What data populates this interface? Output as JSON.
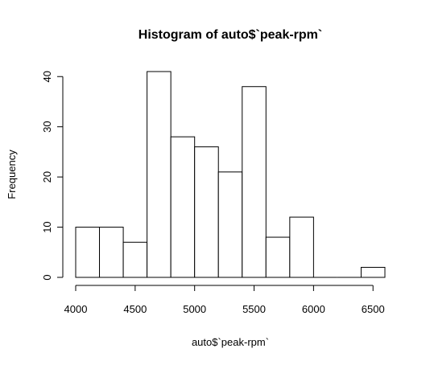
{
  "chart_data": {
    "type": "bar",
    "title": "Histogram of auto$`peak-rpm`",
    "xlabel": "auto$`peak-rpm`",
    "ylabel": "Frequency",
    "bins": [
      {
        "start": 4000,
        "end": 4200,
        "count": 10
      },
      {
        "start": 4200,
        "end": 4400,
        "count": 10
      },
      {
        "start": 4400,
        "end": 4600,
        "count": 7
      },
      {
        "start": 4600,
        "end": 4800,
        "count": 41
      },
      {
        "start": 4800,
        "end": 5000,
        "count": 28
      },
      {
        "start": 5000,
        "end": 5200,
        "count": 26
      },
      {
        "start": 5200,
        "end": 5400,
        "count": 21
      },
      {
        "start": 5400,
        "end": 5600,
        "count": 38
      },
      {
        "start": 5600,
        "end": 5800,
        "count": 8
      },
      {
        "start": 5800,
        "end": 6000,
        "count": 12
      },
      {
        "start": 6000,
        "end": 6200,
        "count": 0
      },
      {
        "start": 6200,
        "end": 6400,
        "count": 0
      },
      {
        "start": 6400,
        "end": 6600,
        "count": 2
      }
    ],
    "xlim": [
      4000,
      6600
    ],
    "ylim": [
      0,
      41
    ],
    "x_ticks": [
      4000,
      4500,
      5000,
      5500,
      6000,
      6500
    ],
    "y_ticks": [
      0,
      10,
      20,
      30,
      40
    ],
    "grid": false,
    "colors": {
      "bar_fill": "#ffffff",
      "bar_stroke": "#000000"
    }
  }
}
